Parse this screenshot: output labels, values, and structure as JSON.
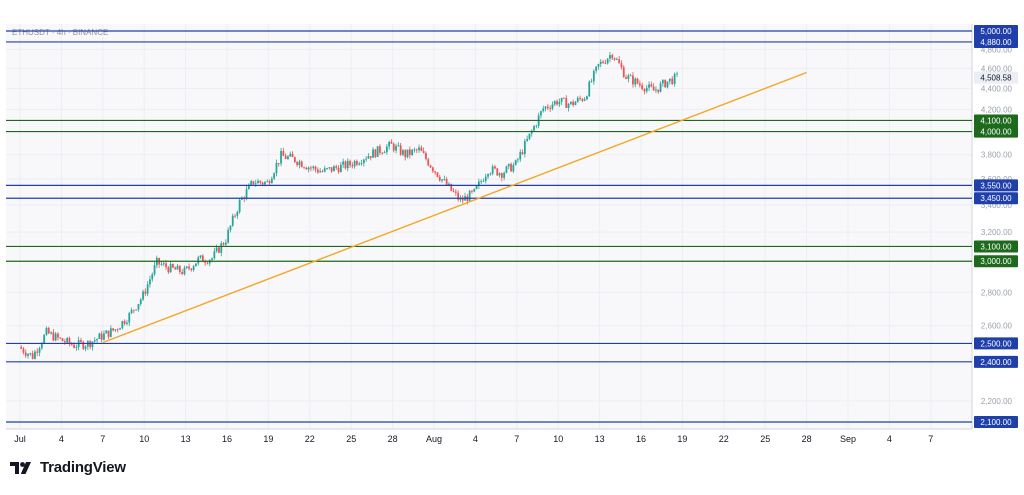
{
  "symbol_line": "ETHUSDT · 4h · BINANCE",
  "brand": {
    "name": "TradingView",
    "logo": "tradingview-logo-icon"
  },
  "colors": {
    "background": "#f8f8fb",
    "grid": "#eceef3",
    "up": "#26a69a",
    "down": "#ef5350",
    "blue_level": "#1f3faa",
    "green_level": "#1d6a1d",
    "trendline": "#f5a623",
    "price_label": "#ebeef5",
    "axis_text": "#9aa0ab"
  },
  "chart_data": {
    "type": "candlestick",
    "title": "ETHUSDT · 4h · BINANCE",
    "xlabel": "",
    "ylabel": "",
    "ylim": [
      2100,
      5000
    ],
    "y_scale": "log",
    "grid": true,
    "x_ticks": [
      "Jul",
      "4",
      "7",
      "10",
      "13",
      "16",
      "19",
      "22",
      "25",
      "28",
      "Aug",
      "4",
      "7",
      "10",
      "13",
      "16",
      "19",
      "22",
      "25",
      "28",
      "Sep",
      "4",
      "7"
    ],
    "y_ticks": [
      "2,200.00",
      "2,400.00",
      "2,600.00",
      "2,800.00",
      "3,000.00",
      "3,200.00",
      "3,400.00",
      "3,600.00",
      "3,800.00",
      "4,000.00",
      "4,200.00",
      "4,400.00",
      "4,600.00",
      "4,800.00"
    ],
    "levels": [
      {
        "value": 5000,
        "label": "5,000.00",
        "color": "blue"
      },
      {
        "value": 4880,
        "label": "4,880.00",
        "color": "blue"
      },
      {
        "value": 4100,
        "label": "4,100.00",
        "color": "green"
      },
      {
        "value": 4000,
        "label": "4,000.00",
        "color": "green"
      },
      {
        "value": 3550,
        "label": "3,550.00",
        "color": "blue"
      },
      {
        "value": 3450,
        "label": "3,450.00",
        "color": "blue"
      },
      {
        "value": 3100,
        "label": "3,100.00",
        "color": "green"
      },
      {
        "value": 3000,
        "label": "3,000.00",
        "color": "green"
      },
      {
        "value": 2500,
        "label": "2,500.00",
        "color": "blue"
      },
      {
        "value": 2400,
        "label": "2,400.00",
        "color": "blue"
      },
      {
        "value": 2100,
        "label": "2,100.00",
        "color": "blue"
      }
    ],
    "last_price": {
      "value": 4508.58,
      "label": "4,508.58"
    },
    "trendline": {
      "start": {
        "day": 7,
        "price": 2505
      },
      "end": {
        "day": 58,
        "price": 4560
      }
    },
    "closes": [
      [
        1,
        2480
      ],
      [
        2,
        2430
      ],
      [
        3,
        2560
      ],
      [
        4,
        2520
      ],
      [
        5,
        2490
      ],
      [
        6,
        2500
      ],
      [
        7,
        2540
      ],
      [
        8,
        2580
      ],
      [
        9,
        2660
      ],
      [
        10,
        2780
      ],
      [
        11,
        2990
      ],
      [
        12,
        2950
      ],
      [
        13,
        2930
      ],
      [
        14,
        3010
      ],
      [
        15,
        3020
      ],
      [
        16,
        3150
      ],
      [
        17,
        3420
      ],
      [
        18,
        3580
      ],
      [
        19,
        3570
      ],
      [
        20,
        3790
      ],
      [
        21,
        3760
      ],
      [
        22,
        3700
      ],
      [
        23,
        3660
      ],
      [
        24,
        3690
      ],
      [
        25,
        3720
      ],
      [
        26,
        3780
      ],
      [
        27,
        3830
      ],
      [
        28,
        3880
      ],
      [
        29,
        3800
      ],
      [
        30,
        3840
      ],
      [
        31,
        3690
      ],
      [
        32,
        3550
      ],
      [
        33,
        3430
      ],
      [
        34,
        3490
      ],
      [
        35,
        3680
      ],
      [
        36,
        3650
      ],
      [
        37,
        3720
      ],
      [
        38,
        3960
      ],
      [
        39,
        4210
      ],
      [
        40,
        4280
      ],
      [
        41,
        4250
      ],
      [
        42,
        4320
      ],
      [
        43,
        4630
      ],
      [
        44,
        4760
      ],
      [
        45,
        4520
      ],
      [
        46,
        4440
      ],
      [
        47,
        4380
      ],
      [
        48,
        4470
      ],
      [
        48.7,
        4508.58
      ]
    ]
  }
}
